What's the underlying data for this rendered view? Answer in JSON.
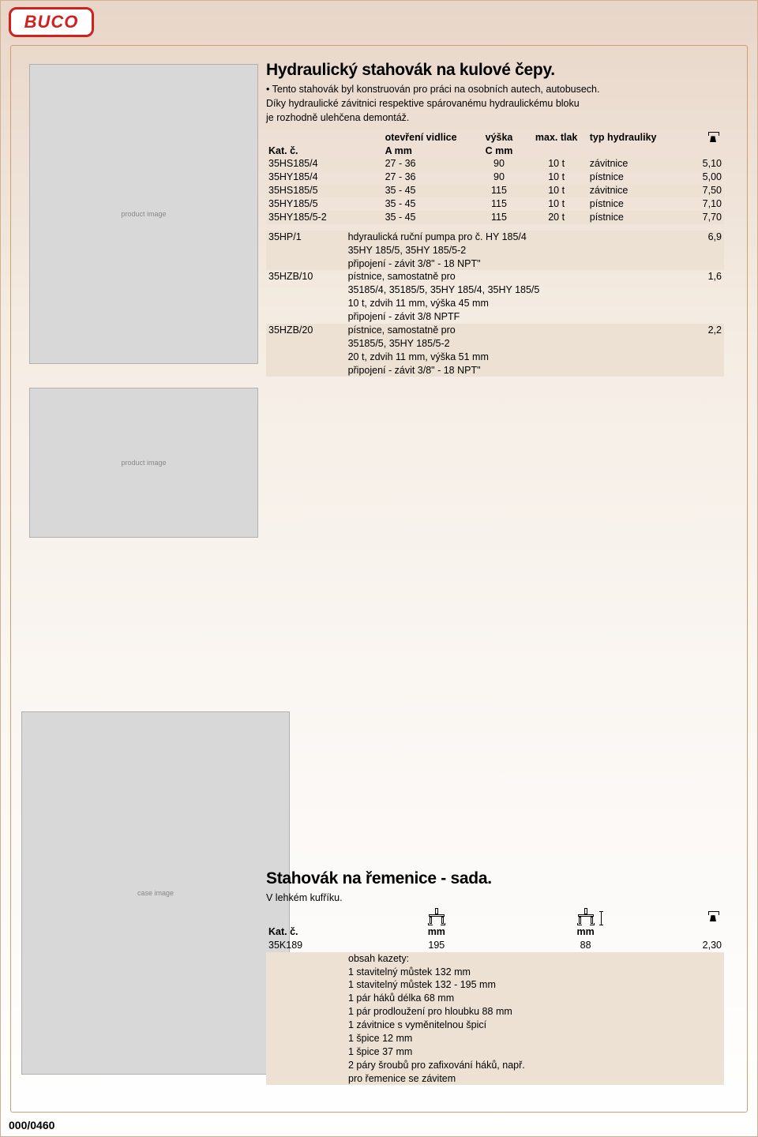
{
  "logo": {
    "text": "BUCO",
    "border_color": "#d02020",
    "text_color": "#d02020"
  },
  "footer": {
    "code": "000/0460"
  },
  "colors": {
    "row_shade": "#ede1d4",
    "page_border": "#d0a070",
    "text": "#000000"
  },
  "section1": {
    "title": "Hydraulický stahovák na kulové čepy.",
    "bullets": [
      "• Tento stahovák byl konstruován pro práci na osobních autech, autobusech.",
      "  Díky hydraulické závitnici respektive spárovanému hydraulickému bloku",
      "  je rozhodně ulehčena demontáž."
    ],
    "headers": {
      "col1_l1": "",
      "col1_l2": "Kat. č.",
      "col2_l1": "otevření vidlice",
      "col2_l2": "A mm",
      "col3_l1": "výška",
      "col3_l2": "C mm",
      "col4_l1": "max. tlak",
      "col4_l2": "",
      "col5_l1": "typ hydrauliky",
      "col5_l2": ""
    },
    "rows": [
      {
        "kat": "35HS185/4",
        "a": "27 - 36",
        "c": "90",
        "tlak": "10 t",
        "typ": "závitnice",
        "w": "5,10"
      },
      {
        "kat": "35HY185/4",
        "a": "27 - 36",
        "c": "90",
        "tlak": "10 t",
        "typ": "pístnice",
        "w": "5,00"
      },
      {
        "kat": "35HS185/5",
        "a": "35 - 45",
        "c": "115",
        "tlak": "10 t",
        "typ": "závitnice",
        "w": "7,50"
      },
      {
        "kat": "35HY185/5",
        "a": "35 - 45",
        "c": "115",
        "tlak": "10 t",
        "typ": "pístnice",
        "w": "7,10"
      },
      {
        "kat": "35HY185/5-2",
        "a": "35 - 45",
        "c": "115",
        "tlak": "20 t",
        "typ": "pístnice",
        "w": "7,70"
      }
    ],
    "extras": [
      {
        "kat": "35HP/1",
        "w": "6,9",
        "lines": [
          "hdyraulická ruční pumpa pro č. HY 185/4",
          "35HY 185/5, 35HY 185/5-2",
          "připojení - závit 3/8\" - 18 NPT\""
        ]
      },
      {
        "kat": "35HZB/10",
        "w": "1,6",
        "lines": [
          "pístnice, samostatně pro",
          "35185/4, 35185/5, 35HY 185/4, 35HY 185/5",
          "10 t, zdvih 11 mm, výška 45 mm",
          "připojení - závit 3/8 NPTF"
        ]
      },
      {
        "kat": "35HZB/20",
        "w": "2,2",
        "lines": [
          "pístnice, samostatně pro",
          "35185/5, 35HY 185/5-2",
          "20 t, zdvih 11 mm, výška 51 mm",
          "připojení - závit 3/8\" - 18 NPT\""
        ]
      }
    ]
  },
  "section2": {
    "title": "Stahovák na řemenice - sada.",
    "subtitle": "V lehkém kufříku.",
    "headers": {
      "col1": "Kat. č.",
      "col2": "mm",
      "col3": "mm"
    },
    "row": {
      "kat": "35K189",
      "v1": "195",
      "v2": "88",
      "w": "2,30"
    },
    "contents_label": "obsah kazety:",
    "contents": [
      "1 stavitelný můstek  132 mm",
      "1 stavitelný můstek 132 - 195 mm",
      "1 pár háků délka 68 mm",
      "1 pár prodloužení pro hloubku 88 mm",
      "1 závitnice s vyměnitelnou špicí",
      "1 špice 12 mm",
      "1 špice 37 mm",
      "2 páry šroubů pro zafixování háků, např.",
      "pro řemenice se závitem"
    ]
  }
}
